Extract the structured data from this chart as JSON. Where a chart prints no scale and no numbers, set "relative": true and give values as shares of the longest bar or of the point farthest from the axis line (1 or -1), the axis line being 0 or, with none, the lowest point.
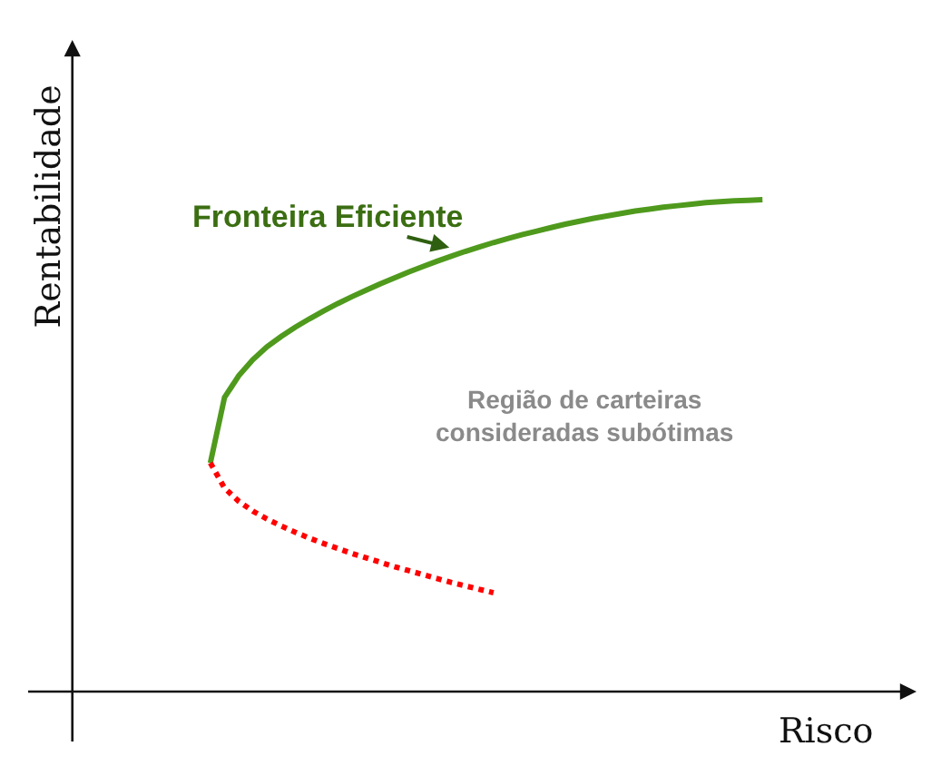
{
  "chart_data": {
    "type": "line",
    "xlabel": "Risco",
    "ylabel": "Rentabilidade",
    "relative": true,
    "annotations": [
      "Região de carteiras\nconsideradas subótimas"
    ],
    "categories": [
      null,
      null,
      null,
      null,
      null,
      null,
      null,
      null,
      null,
      null,
      null,
      null,
      null,
      null,
      null,
      null,
      null,
      null,
      null,
      null,
      null,
      null,
      null,
      null,
      null,
      null,
      null,
      null,
      null,
      null,
      null,
      null,
      null,
      null,
      null,
      null,
      null,
      null,
      null,
      null
    ],
    "series": [
      {
        "name": "Fronteira Eficiente",
        "color": "#4f9a1d",
        "line_style": "solid",
        "values": [
          0.465,
          0.598,
          0.642,
          0.675,
          0.701,
          0.722,
          0.741,
          0.758,
          0.774,
          0.789,
          0.803,
          0.816,
          0.829,
          0.841,
          0.853,
          0.864,
          0.875,
          0.885,
          0.895,
          0.904,
          0.913,
          0.921,
          0.929,
          0.936,
          0.943,
          0.95,
          0.956,
          0.962,
          0.967,
          0.972,
          0.977,
          0.981,
          0.985,
          0.988,
          0.991,
          0.994,
          0.996,
          0.998,
          0.999,
          1.0
        ]
      },
      {
        "color": "#ff0000",
        "line_style": "dotted",
        "values": [
          0.465,
          0.414,
          0.387,
          0.367,
          0.351,
          0.337,
          0.324,
          0.312,
          0.301,
          0.291,
          0.281,
          0.272,
          0.263,
          0.254,
          0.246,
          0.238,
          0.23,
          0.222,
          0.215,
          0.208,
          0.201,
          null,
          null,
          null,
          null,
          null,
          null,
          null,
          null,
          null,
          null,
          null,
          null,
          null,
          null,
          null,
          null,
          null,
          null,
          null
        ]
      }
    ]
  }
}
